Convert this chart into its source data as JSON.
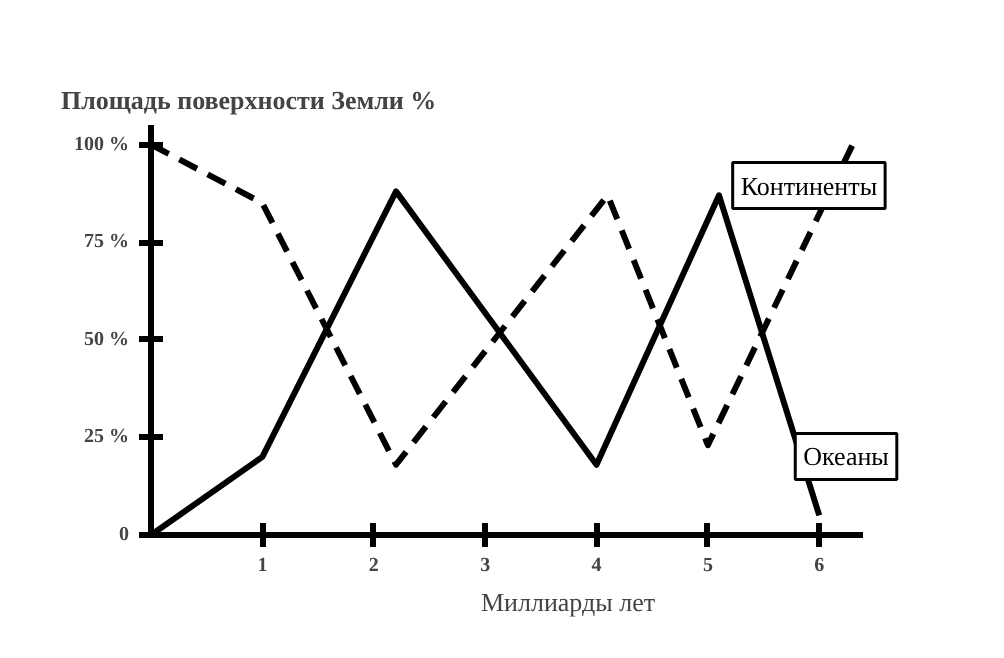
{
  "chart_data": {
    "type": "line",
    "title": "Площадь поверхности Земли %",
    "xlabel": "Миллиарды лет",
    "xlim": [
      0,
      6.4
    ],
    "ylim": [
      0,
      105
    ],
    "xticks": [
      1,
      2,
      3,
      4,
      5,
      6
    ],
    "yticks": [
      {
        "value": 0,
        "label": "0"
      },
      {
        "value": 25,
        "label": "25 %"
      },
      {
        "value": 50,
        "label": "50 %"
      },
      {
        "value": 75,
        "label": "75 %"
      },
      {
        "value": 100,
        "label": "100 %"
      }
    ],
    "grid": false,
    "legend": "right",
    "marker": "none",
    "series": [
      {
        "name": "Океаны",
        "color": "#000000",
        "line_style": "solid",
        "x": [
          0,
          1,
          2.2,
          4,
          5.1,
          6
        ],
        "values": [
          0,
          20,
          88,
          18,
          87,
          5
        ]
      },
      {
        "name": "Континенты",
        "color": "#000000",
        "line_style": "dashed",
        "x": [
          0,
          1,
          2.2,
          4.1,
          5,
          6.3
        ],
        "values": [
          100,
          85,
          18,
          87,
          23,
          100
        ]
      }
    ]
  }
}
